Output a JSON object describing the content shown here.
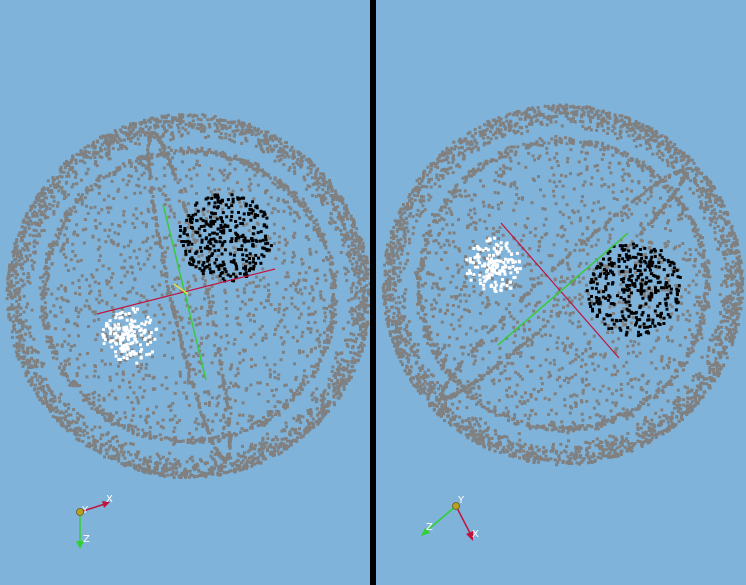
{
  "colors": {
    "background": "#7fb3d9",
    "divider": "#000000",
    "shell_points": "#808080",
    "dark_cluster": "#000000",
    "light_cluster": "#ffffff",
    "axis_x": "#c0143c",
    "axis_y": "#3cc83c",
    "axis_z": "#30d030",
    "origin_marker": "#b8a020"
  },
  "viewports": [
    {
      "name": "left-view",
      "triad": {
        "x_label": "X",
        "y_label": "Y",
        "z_label": "Z"
      }
    },
    {
      "name": "right-view",
      "triad": {
        "x_label": "X",
        "y_label": "Y",
        "z_label": "Z"
      }
    }
  ]
}
